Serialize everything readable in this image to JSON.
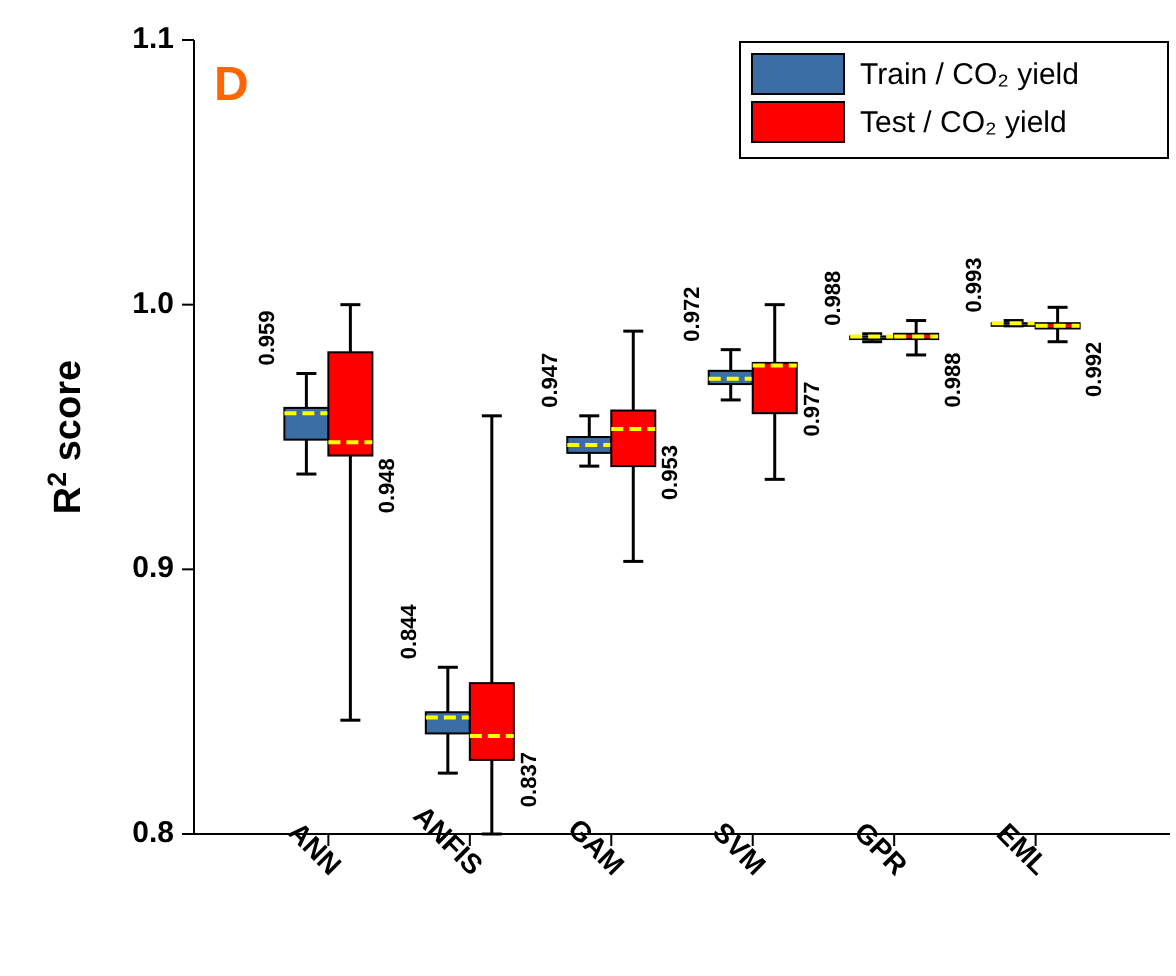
{
  "chart_data": {
    "type": "box",
    "ylabel": "R$^{2}$ score",
    "annotations": [
      "D"
    ],
    "categories": [
      "ANN",
      "ANFIS",
      "GAM",
      "SVM",
      "GPR",
      "EML"
    ],
    "ylim": [
      0.8,
      1.1
    ],
    "yticks": [
      0.8,
      0.9,
      {
        "value": 1,
        "label": "1.0"
      },
      1.1
    ],
    "legend": "top right",
    "series": [
      {
        "name": "Train / CO₂ yield",
        "color": "#3a6ea5",
        "value_labels": [
          "0.959",
          "0.844",
          "0.947",
          "0.972",
          "0.988",
          "0.993"
        ],
        "boxes": [
          {
            "low": 0.936,
            "q1": 0.949,
            "median": 0.959,
            "q3": 0.961,
            "high": 0.974
          },
          {
            "low": 0.823,
            "q1": 0.838,
            "median": 0.844,
            "q3": 0.846,
            "high": 0.863
          },
          {
            "low": 0.939,
            "q1": 0.944,
            "median": 0.947,
            "q3": 0.95,
            "high": 0.958
          },
          {
            "low": 0.964,
            "q1": 0.97,
            "median": 0.972,
            "q3": 0.975,
            "high": 0.983
          },
          {
            "low": 0.986,
            "q1": 0.987,
            "median": 0.988,
            "q3": 0.988,
            "high": 0.989
          },
          {
            "low": 0.992,
            "q1": 0.992,
            "median": 0.993,
            "q3": 0.993,
            "high": 0.994
          }
        ]
      },
      {
        "name": "Test / CO₂ yield",
        "color": "#ff0000",
        "value_labels": [
          "0.948",
          "0.837",
          "0.953",
          "0.977",
          "0.988",
          "0.992"
        ],
        "boxes": [
          {
            "low": 0.843,
            "q1": 0.943,
            "median": 0.948,
            "q3": 0.982,
            "high": 1.0
          },
          {
            "low": 0.8,
            "q1": 0.828,
            "median": 0.837,
            "q3": 0.857,
            "high": 0.958
          },
          {
            "low": 0.903,
            "q1": 0.939,
            "median": 0.953,
            "q3": 0.96,
            "high": 0.99
          },
          {
            "low": 0.934,
            "q1": 0.959,
            "median": 0.977,
            "q3": 0.978,
            "high": 1.0
          },
          {
            "low": 0.981,
            "q1": 0.987,
            "median": 0.988,
            "q3": 0.989,
            "high": 0.994
          },
          {
            "low": 0.986,
            "q1": 0.991,
            "median": 0.992,
            "q3": 0.993,
            "high": 0.999
          }
        ]
      }
    ]
  }
}
